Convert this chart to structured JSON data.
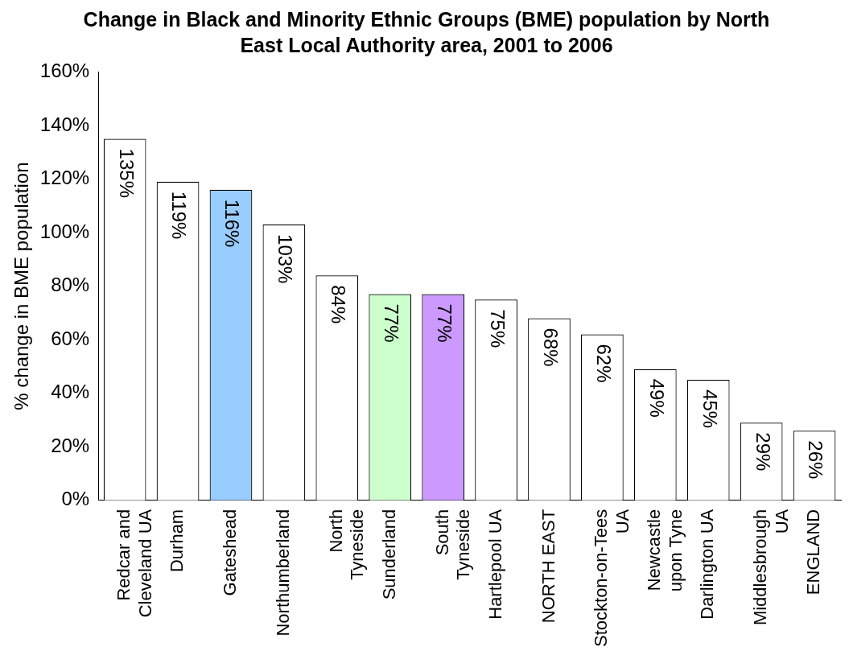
{
  "chart_data": {
    "type": "bar",
    "title": "Change in Black and Minority Ethnic Groups (BME) population by North East Local Authority area, 2001 to 2006",
    "ylabel": "% change in BME population",
    "categories": [
      "Redcar and Cleveland UA",
      "Durham",
      "Gateshead",
      "Northumberland",
      "North Tyneside",
      "Sunderland",
      "South Tyneside",
      "Hartlepool UA",
      "NORTH EAST",
      "Stockton-on-Tees UA",
      "Newcastle upon Tyne",
      "Darlington UA",
      "Middlesbrough UA",
      "ENGLAND"
    ],
    "values": [
      135,
      119,
      116,
      103,
      84,
      77,
      77,
      75,
      68,
      62,
      49,
      45,
      29,
      26
    ],
    "colors": [
      "#ffffff",
      "#ffffff",
      "#99ccff",
      "#ffffff",
      "#ffffff",
      "#ccffcc",
      "#cc99ff",
      "#ffffff",
      "#ffffff",
      "#ffffff",
      "#ffffff",
      "#ffffff",
      "#ffffff",
      "#ffffff"
    ],
    "value_labels": [
      "135%",
      "119%",
      "116%",
      "103%",
      "84%",
      "77%",
      "77%",
      "75%",
      "68%",
      "62%",
      "49%",
      "45%",
      "29%",
      "26%"
    ],
    "ylim": [
      0,
      160
    ],
    "yticks": [
      {
        "value": 0,
        "label": "0%"
      },
      {
        "value": 20,
        "label": "20%"
      },
      {
        "value": 40,
        "label": "40%"
      },
      {
        "value": 60,
        "label": "60%"
      },
      {
        "value": 80,
        "label": "80%"
      },
      {
        "value": 100,
        "label": "100%"
      },
      {
        "value": 120,
        "label": "120%"
      },
      {
        "value": 140,
        "label": "140%"
      },
      {
        "value": 160,
        "label": "160%"
      }
    ],
    "grid": false,
    "legend": false
  }
}
